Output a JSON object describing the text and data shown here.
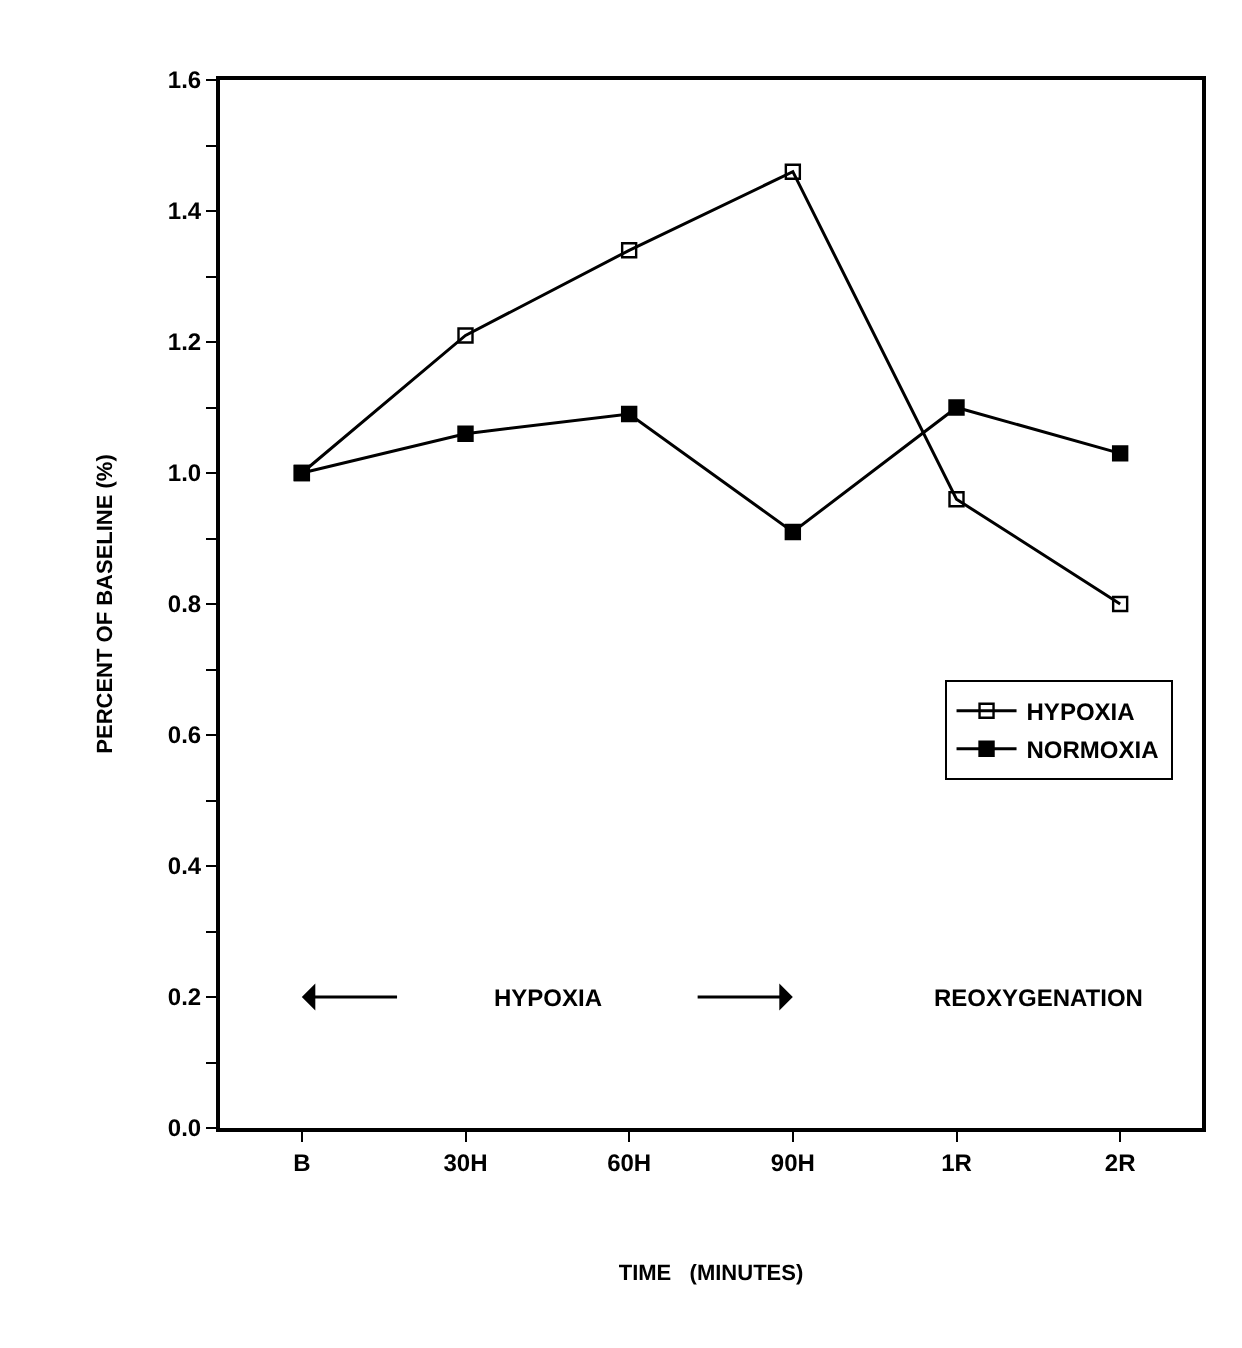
{
  "chart_data": {
    "type": "line",
    "xlabel": "TIME   (MINUTES)",
    "ylabel": "PERCENT OF BASELINE (%)",
    "categories": [
      "B",
      "30H",
      "60H",
      "90H",
      "1R",
      "2R"
    ],
    "series": [
      {
        "name": "HYPOXIA",
        "color": "#000000",
        "marker": "square-open",
        "values": [
          1.0,
          1.21,
          1.34,
          1.46,
          0.96,
          0.8
        ]
      },
      {
        "name": "NORMOXIA",
        "color": "#000000",
        "marker": "square",
        "values": [
          1.0,
          1.06,
          1.09,
          0.91,
          1.1,
          1.03
        ]
      }
    ],
    "ylim": [
      0,
      1.6
    ],
    "yticks": [
      {
        "value": 0,
        "label": "0.0"
      },
      {
        "value": 0.1,
        "label": null
      },
      0.2,
      {
        "value": 0.3,
        "label": null
      },
      0.4,
      {
        "value": 0.5,
        "label": null
      },
      0.6,
      {
        "value": 0.7,
        "label": null
      },
      0.8,
      {
        "value": 0.9,
        "label": null
      },
      {
        "value": 1,
        "label": "1.0"
      },
      {
        "value": 1.1,
        "label": null
      },
      1.2,
      {
        "value": 1.3,
        "label": null
      },
      1.4,
      {
        "value": 1.5,
        "label": null
      },
      1.6
    ],
    "annotations": [
      "HYPOXIA",
      "REOXYGENATION"
    ],
    "legend": "right",
    "line_style": "solid"
  }
}
